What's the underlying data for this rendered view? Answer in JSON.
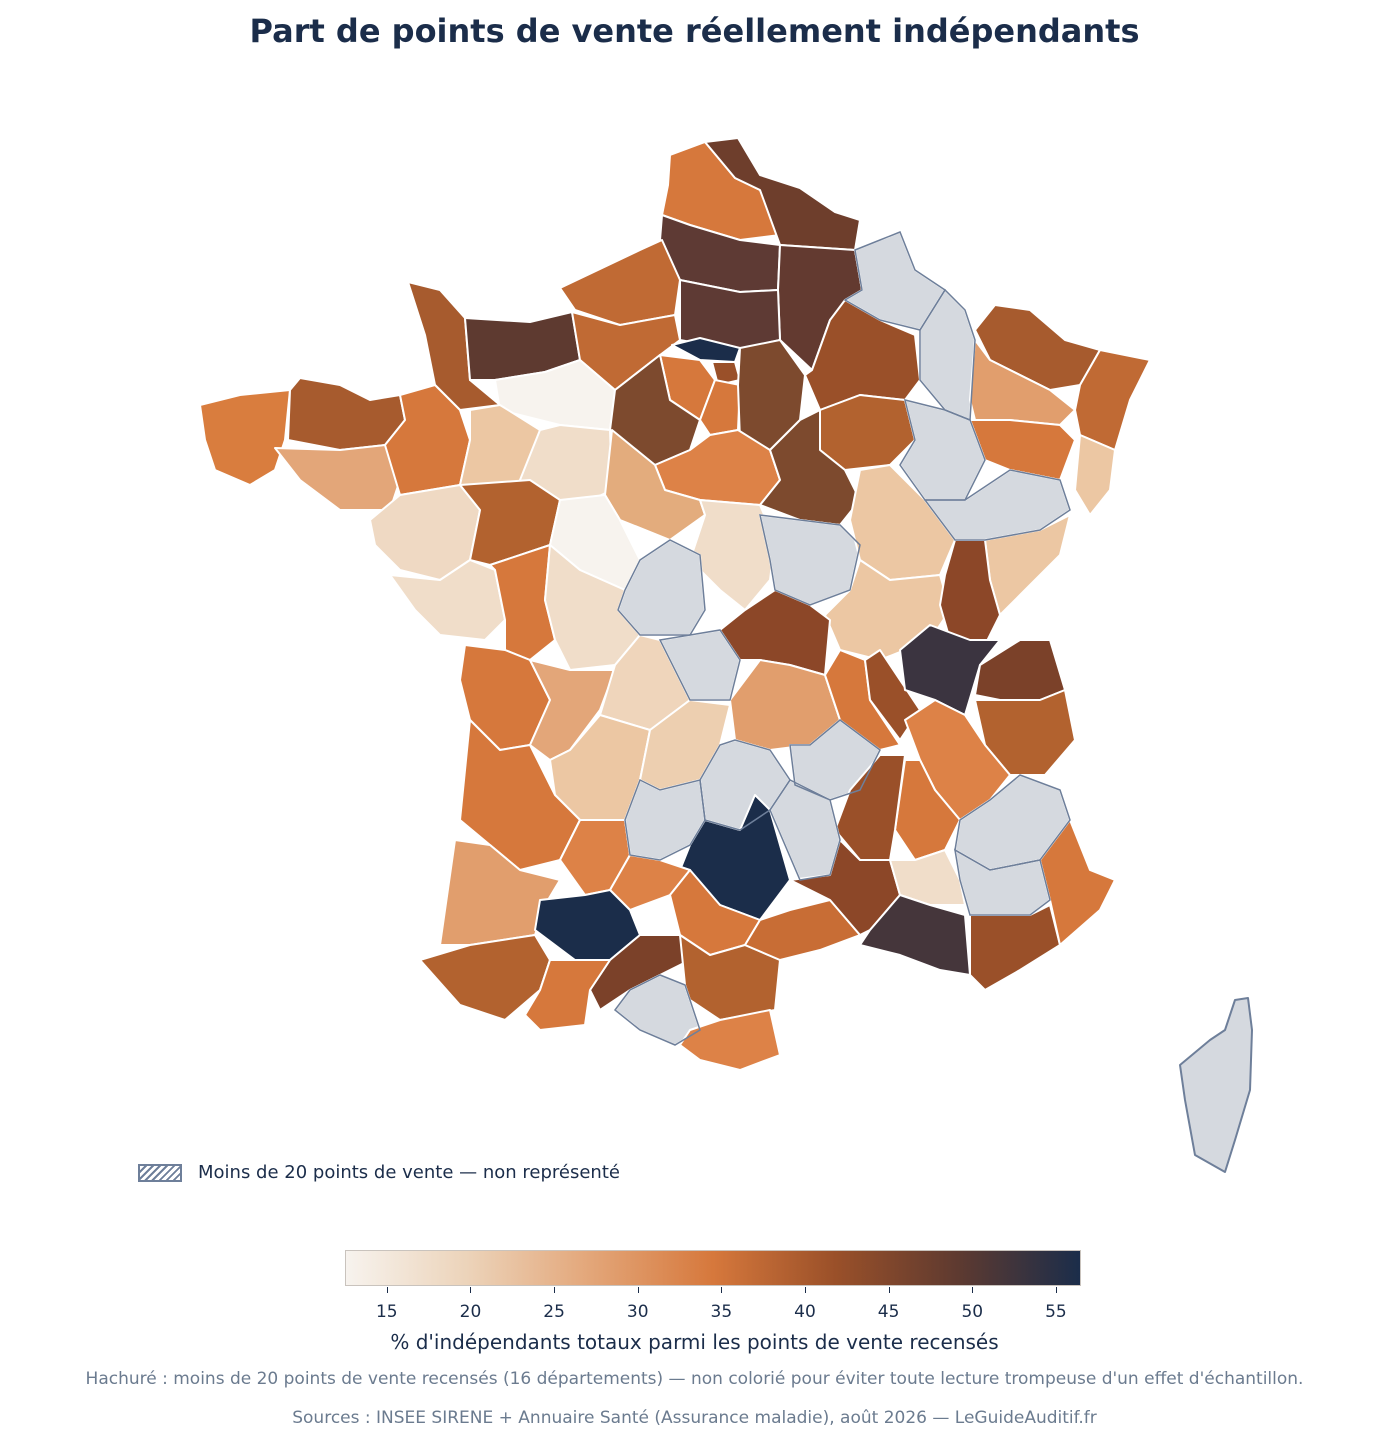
{
  "title": "Part de points de vente réellement indépendants",
  "legend": {
    "hatch_label": "Moins de 20 points de vente — non représenté"
  },
  "colorbar": {
    "label": "% d'indépendants totaux parmi les points de vente recensés",
    "ticks": [
      "15",
      "20",
      "25",
      "30",
      "35",
      "40",
      "45",
      "50",
      "55"
    ],
    "min": 12.5,
    "max": 56.5,
    "colors": [
      "#f7f3ee",
      "#ecd3b9",
      "#e3a679",
      "#d6783c",
      "#9a5029",
      "#5e3a30",
      "#1b2d4a"
    ]
  },
  "footnote": "Hachuré : moins de 20 points de vente recensés (16 départements) — non colorié pour éviter toute lecture trompeuse d'un effet d'échantillon.",
  "sources": "Sources : INSEE SIRENE + Annuaire Santé (Assurance maladie), août 2026 — LeGuideAuditif.fr",
  "colors": {
    "no_data_fill": "#d5d9df",
    "no_data_stroke": "#6e7f9a",
    "text": "#1b2d4a",
    "muted": "#6b7b8f"
  }
}
